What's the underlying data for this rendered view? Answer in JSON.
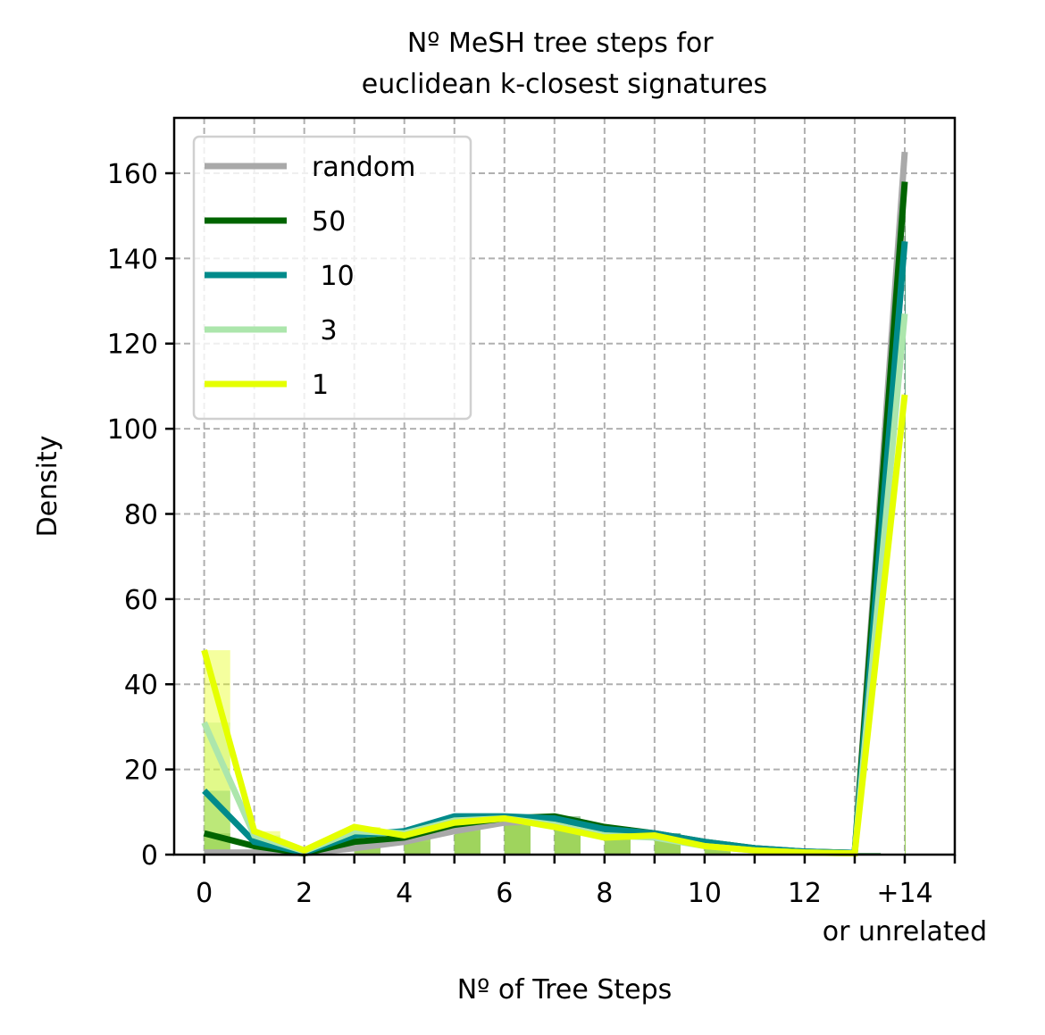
{
  "chart_data": {
    "type": "line",
    "title": "Nº MeSH tree steps for\neuclidean k-closest signatures",
    "xlabel": "Nº of Tree Steps",
    "ylabel": "Density",
    "x": [
      0,
      1,
      2,
      3,
      4,
      5,
      6,
      7,
      8,
      9,
      10,
      11,
      12,
      13,
      14
    ],
    "xlim": [
      -0.6,
      15
    ],
    "ylim": [
      0,
      173
    ],
    "xticks": [
      {
        "value": 0,
        "label": "0"
      },
      {
        "value": 2,
        "label": "2"
      },
      {
        "value": 4,
        "label": "4"
      },
      {
        "value": 6,
        "label": "6"
      },
      {
        "value": 8,
        "label": "8"
      },
      {
        "value": 10,
        "label": "10"
      },
      {
        "value": 12,
        "label": "12"
      },
      {
        "value": 14,
        "label": "+14\nor unrelated"
      }
    ],
    "xminor": [
      1,
      3,
      5,
      7,
      9,
      11,
      13,
      15
    ],
    "yticks": [
      0,
      20,
      40,
      60,
      80,
      100,
      120,
      140,
      160
    ],
    "grid": true,
    "legend_position": "upper-left",
    "series": [
      {
        "name": "random",
        "color": "#a9a9a9",
        "values": [
          0.5,
          0.5,
          0.3,
          1.5,
          3,
          5.5,
          7.5,
          8,
          6,
          4.5,
          2.5,
          1.2,
          0.7,
          0.4,
          165
        ]
      },
      {
        "name": "50",
        "color": "#006400",
        "values": [
          5,
          2,
          0.3,
          3,
          4,
          7,
          8.5,
          9,
          6.5,
          5,
          3,
          1.5,
          0.7,
          0.4,
          158
        ]
      },
      {
        "name": " 10",
        "color": "#008b8b",
        "values": [
          15,
          3,
          0.5,
          4.5,
          5.5,
          9,
          9,
          8.5,
          6,
          5,
          3,
          1.5,
          0.7,
          0.4,
          144
        ]
      },
      {
        "name": " 3",
        "color": "#ace6ac",
        "values": [
          31,
          4.5,
          0.8,
          5.5,
          5,
          8,
          8.5,
          7,
          4.5,
          4,
          2,
          1,
          0.5,
          0.3,
          127
        ]
      },
      {
        "name": "1",
        "color": "#e5ff00",
        "values": [
          48,
          5.5,
          1,
          6.5,
          4.5,
          7.5,
          8.5,
          6.5,
          4,
          4.5,
          2,
          1,
          0.5,
          0.3,
          108
        ]
      }
    ]
  }
}
